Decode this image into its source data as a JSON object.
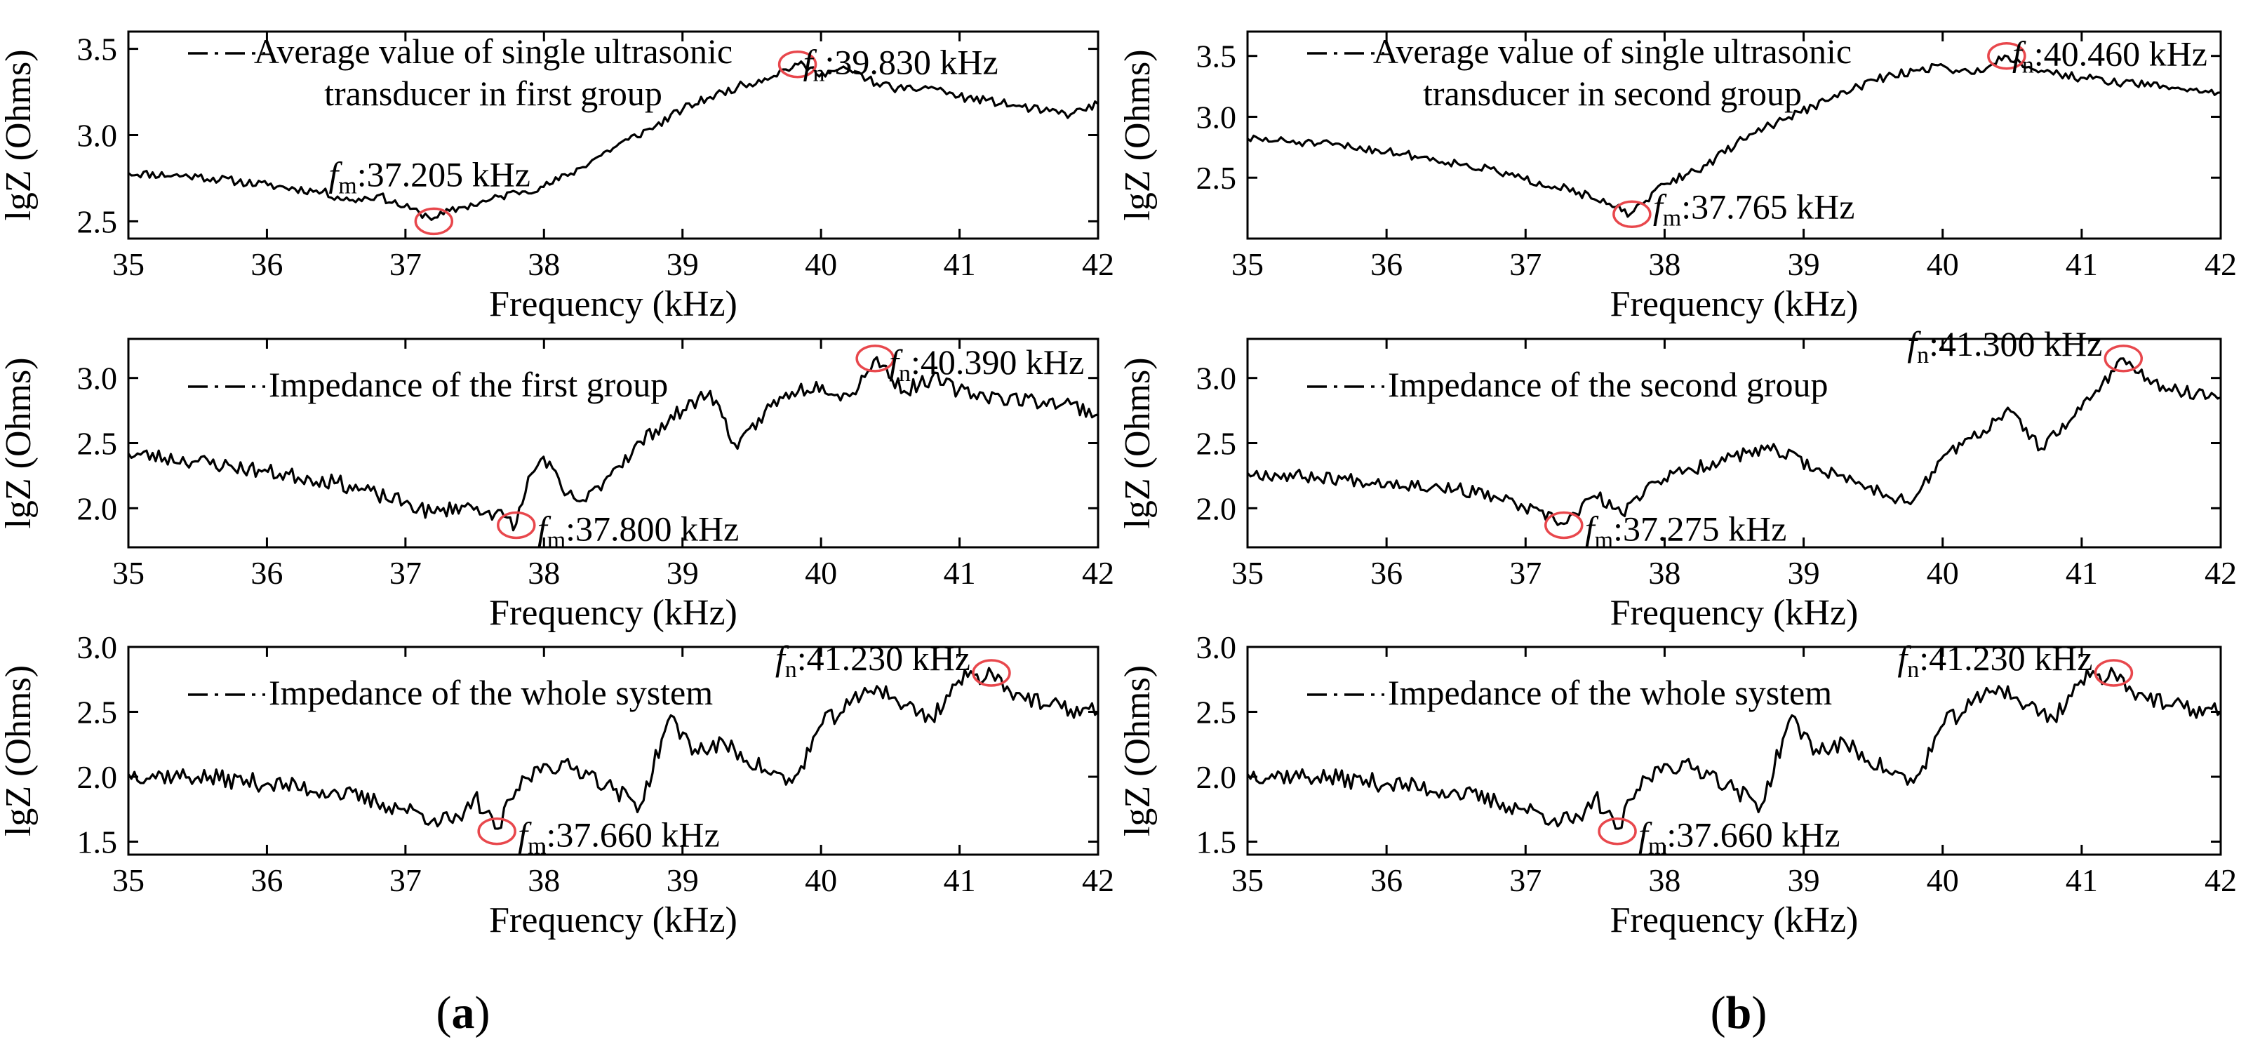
{
  "figure": {
    "panel_labels": {
      "a": {
        "open": "(",
        "letter": "a",
        "close": ")"
      },
      "b": {
        "open": "(",
        "letter": "b",
        "close": ")"
      }
    },
    "line_color": "#000000",
    "marker_color": "#e8474c"
  },
  "chart_data": [
    {
      "type": "line",
      "column": "a",
      "row": 0,
      "title": "",
      "xlabel": "Frequency (kHz)",
      "ylabel": "lgZ (Ohms)",
      "xlim": [
        35,
        42
      ],
      "ylim": [
        2.4,
        3.6
      ],
      "xticks": [
        35,
        36,
        37,
        38,
        39,
        40,
        41,
        42
      ],
      "yticks": [
        2.5,
        3.0,
        3.5
      ],
      "ytick_labels": [
        "2.5",
        "3.0",
        "3.5"
      ],
      "legend_lines": [
        "Average value of single ultrasonic",
        "transducer in first group"
      ],
      "anchors": [
        [
          35,
          2.78
        ],
        [
          35.5,
          2.76
        ],
        [
          36,
          2.71
        ],
        [
          36.4,
          2.67
        ],
        [
          36.6,
          2.62
        ],
        [
          36.8,
          2.65
        ],
        [
          37,
          2.58
        ],
        [
          37.1,
          2.55
        ],
        [
          37.205,
          2.52
        ],
        [
          37.4,
          2.58
        ],
        [
          37.6,
          2.62
        ],
        [
          37.8,
          2.67
        ],
        [
          38,
          2.7
        ],
        [
          38.2,
          2.78
        ],
        [
          38.4,
          2.88
        ],
        [
          38.6,
          2.97
        ],
        [
          38.8,
          3.05
        ],
        [
          39,
          3.15
        ],
        [
          39.2,
          3.22
        ],
        [
          39.4,
          3.28
        ],
        [
          39.6,
          3.33
        ],
        [
          39.83,
          3.41
        ],
        [
          40,
          3.36
        ],
        [
          40.2,
          3.38
        ],
        [
          40.4,
          3.3
        ],
        [
          40.6,
          3.26
        ],
        [
          40.8,
          3.28
        ],
        [
          41,
          3.22
        ],
        [
          41.2,
          3.2
        ],
        [
          41.4,
          3.17
        ],
        [
          41.6,
          3.14
        ],
        [
          41.8,
          3.12
        ],
        [
          42,
          3.18
        ]
      ],
      "noise": 0.025,
      "seed": 11,
      "annotations": [
        {
          "kind": "fm",
          "italic": "f",
          "sub": "m",
          "value": ":37.205 kHz",
          "x": 37.205,
          "y": 2.5
        },
        {
          "kind": "fn",
          "italic": "f",
          "sub": "n",
          "value": ":39.830 kHz",
          "x": 39.83,
          "y": 3.41
        }
      ]
    },
    {
      "type": "line",
      "column": "a",
      "row": 1,
      "title": "",
      "xlabel": "Frequency (kHz)",
      "ylabel": "lgZ (Ohms)",
      "xlim": [
        35,
        42
      ],
      "ylim": [
        1.7,
        3.3
      ],
      "xticks": [
        35,
        36,
        37,
        38,
        39,
        40,
        41,
        42
      ],
      "yticks": [
        2.0,
        2.5,
        3.0
      ],
      "ytick_labels": [
        "2.0",
        "2.5",
        "3.0"
      ],
      "legend_lines": [
        "Impedance of the first group"
      ],
      "anchors": [
        [
          35,
          2.42
        ],
        [
          35.5,
          2.36
        ],
        [
          36,
          2.28
        ],
        [
          36.5,
          2.2
        ],
        [
          36.8,
          2.1
        ],
        [
          37,
          2.04
        ],
        [
          37.2,
          1.96
        ],
        [
          37.4,
          2.02
        ],
        [
          37.6,
          1.98
        ],
        [
          37.8,
          1.88
        ],
        [
          37.9,
          2.25
        ],
        [
          38,
          2.4
        ],
        [
          38.15,
          2.1
        ],
        [
          38.3,
          2.05
        ],
        [
          38.5,
          2.3
        ],
        [
          38.8,
          2.6
        ],
        [
          39,
          2.75
        ],
        [
          39.2,
          2.9
        ],
        [
          39.4,
          2.45
        ],
        [
          39.6,
          2.75
        ],
        [
          39.8,
          2.9
        ],
        [
          40,
          2.95
        ],
        [
          40.2,
          2.85
        ],
        [
          40.39,
          3.15
        ],
        [
          40.6,
          2.9
        ],
        [
          40.8,
          3.0
        ],
        [
          41,
          2.9
        ],
        [
          41.3,
          2.85
        ],
        [
          41.6,
          2.82
        ],
        [
          41.8,
          2.8
        ],
        [
          42,
          2.72
        ]
      ],
      "noise": 0.06,
      "seed": 23,
      "annotations": [
        {
          "kind": "fm",
          "italic": "f",
          "sub": "m",
          "value": ":37.800 kHz",
          "x": 37.8,
          "y": 1.87
        },
        {
          "kind": "fn",
          "italic": "f",
          "sub": "n",
          "value": ":40.390 kHz",
          "x": 40.39,
          "y": 3.15
        }
      ]
    },
    {
      "type": "line",
      "column": "a",
      "row": 2,
      "title": "",
      "xlabel": "Frequency (kHz)",
      "ylabel": "lgZ (Ohms)",
      "xlim": [
        35,
        42
      ],
      "ylim": [
        1.4,
        3.0
      ],
      "xticks": [
        35,
        36,
        37,
        38,
        39,
        40,
        41,
        42
      ],
      "yticks": [
        1.5,
        2.0,
        2.5,
        3.0
      ],
      "ytick_labels": [
        "1.5",
        "2.0",
        "2.5",
        "3.0"
      ],
      "legend_lines": [
        "Impedance of the whole system"
      ],
      "anchors": [
        [
          35,
          2.02
        ],
        [
          35.5,
          2.0
        ],
        [
          36,
          1.95
        ],
        [
          36.5,
          1.88
        ],
        [
          36.8,
          1.8
        ],
        [
          37,
          1.75
        ],
        [
          37.2,
          1.68
        ],
        [
          37.4,
          1.65
        ],
        [
          37.5,
          1.85
        ],
        [
          37.66,
          1.58
        ],
        [
          37.8,
          1.9
        ],
        [
          38,
          2.1
        ],
        [
          38.3,
          2.05
        ],
        [
          38.5,
          1.9
        ],
        [
          38.7,
          1.78
        ],
        [
          38.9,
          2.45
        ],
        [
          39.1,
          2.2
        ],
        [
          39.3,
          2.25
        ],
        [
          39.6,
          2.05
        ],
        [
          39.8,
          1.95
        ],
        [
          40,
          2.4
        ],
        [
          40.2,
          2.55
        ],
        [
          40.4,
          2.7
        ],
        [
          40.6,
          2.55
        ],
        [
          40.8,
          2.45
        ],
        [
          41,
          2.75
        ],
        [
          41.23,
          2.8
        ],
        [
          41.4,
          2.65
        ],
        [
          41.6,
          2.55
        ],
        [
          41.8,
          2.52
        ],
        [
          42,
          2.5
        ]
      ],
      "noise": 0.07,
      "seed": 37,
      "annotations": [
        {
          "kind": "fm",
          "italic": "f",
          "sub": "m",
          "value": ":37.660 kHz",
          "x": 37.66,
          "y": 1.58
        },
        {
          "kind": "fn",
          "italic": "f",
          "sub": "n",
          "value": ":41.230 kHz",
          "x": 41.23,
          "y": 2.8
        }
      ]
    },
    {
      "type": "line",
      "column": "b",
      "row": 0,
      "title": "",
      "xlabel": "Frequency (kHz)",
      "ylabel": "lgZ (Ohms)",
      "xlim": [
        35,
        42
      ],
      "ylim": [
        2.0,
        3.7
      ],
      "xticks": [
        35,
        36,
        37,
        38,
        39,
        40,
        41,
        42
      ],
      "yticks": [
        2.0,
        2.5,
        3.0,
        3.5
      ],
      "ytick_labels": [
        "",
        "2.5",
        "3.0",
        "3.5"
      ],
      "legend_lines": [
        "Average value of single ultrasonic",
        "transducer in second group"
      ],
      "anchors": [
        [
          35,
          2.82
        ],
        [
          35.5,
          2.78
        ],
        [
          36,
          2.72
        ],
        [
          36.5,
          2.62
        ],
        [
          36.8,
          2.55
        ],
        [
          37,
          2.48
        ],
        [
          37.3,
          2.42
        ],
        [
          37.5,
          2.32
        ],
        [
          37.765,
          2.2
        ],
        [
          38,
          2.45
        ],
        [
          38.3,
          2.6
        ],
        [
          38.6,
          2.85
        ],
        [
          38.9,
          3.0
        ],
        [
          39.2,
          3.15
        ],
        [
          39.5,
          3.3
        ],
        [
          39.8,
          3.38
        ],
        [
          40,
          3.42
        ],
        [
          40.2,
          3.35
        ],
        [
          40.46,
          3.5
        ],
        [
          40.7,
          3.38
        ],
        [
          41,
          3.32
        ],
        [
          41.3,
          3.28
        ],
        [
          41.6,
          3.25
        ],
        [
          41.8,
          3.22
        ],
        [
          42,
          3.2
        ]
      ],
      "noise": 0.035,
      "seed": 51,
      "annotations": [
        {
          "kind": "fm",
          "italic": "f",
          "sub": "m",
          "value": ":37.765 kHz",
          "x": 37.765,
          "y": 2.2
        },
        {
          "kind": "fn",
          "italic": "f",
          "sub": "n",
          "value": ":40.460 kHz",
          "x": 40.46,
          "y": 3.5
        }
      ]
    },
    {
      "type": "line",
      "column": "b",
      "row": 1,
      "title": "",
      "xlabel": "Frequency (kHz)",
      "ylabel": "lgZ (Ohms)",
      "xlim": [
        35,
        42
      ],
      "ylim": [
        1.7,
        3.3
      ],
      "xticks": [
        35,
        36,
        37,
        38,
        39,
        40,
        41,
        42
      ],
      "yticks": [
        2.0,
        2.5,
        3.0
      ],
      "ytick_labels": [
        "2.0",
        "2.5",
        "3.0"
      ],
      "legend_lines": [
        "Impedance of the second group"
      ],
      "anchors": [
        [
          35,
          2.27
        ],
        [
          35.5,
          2.24
        ],
        [
          36,
          2.2
        ],
        [
          36.5,
          2.15
        ],
        [
          36.8,
          2.08
        ],
        [
          37,
          2.0
        ],
        [
          37.275,
          1.88
        ],
        [
          37.5,
          2.1
        ],
        [
          37.7,
          1.95
        ],
        [
          37.9,
          2.2
        ],
        [
          38.2,
          2.3
        ],
        [
          38.5,
          2.4
        ],
        [
          38.8,
          2.45
        ],
        [
          39.1,
          2.3
        ],
        [
          39.4,
          2.2
        ],
        [
          39.6,
          2.1
        ],
        [
          39.8,
          2.06
        ],
        [
          40,
          2.4
        ],
        [
          40.3,
          2.6
        ],
        [
          40.5,
          2.75
        ],
        [
          40.7,
          2.45
        ],
        [
          40.9,
          2.65
        ],
        [
          41.1,
          2.9
        ],
        [
          41.3,
          3.15
        ],
        [
          41.5,
          2.95
        ],
        [
          41.7,
          2.9
        ],
        [
          42,
          2.85
        ]
      ],
      "noise": 0.05,
      "seed": 67,
      "annotations": [
        {
          "kind": "fm",
          "italic": "f",
          "sub": "m",
          "value": ":37.275 kHz",
          "x": 37.275,
          "y": 1.87
        },
        {
          "kind": "fn",
          "italic": "f",
          "sub": "n",
          "value": ":41.300 kHz",
          "x": 41.3,
          "y": 3.15
        }
      ]
    },
    {
      "type": "line",
      "column": "b",
      "row": 2,
      "title": "",
      "xlabel": "Frequency (kHz)",
      "ylabel": "lgZ (Ohms)",
      "xlim": [
        35,
        42
      ],
      "ylim": [
        1.4,
        3.0
      ],
      "xticks": [
        35,
        36,
        37,
        38,
        39,
        40,
        41,
        42
      ],
      "yticks": [
        1.5,
        2.0,
        2.5,
        3.0
      ],
      "ytick_labels": [
        "1.5",
        "2.0",
        "2.5",
        "3.0"
      ],
      "legend_lines": [
        "Impedance of the whole system"
      ],
      "anchors": [
        [
          35,
          2.02
        ],
        [
          35.5,
          2.0
        ],
        [
          36,
          1.95
        ],
        [
          36.5,
          1.88
        ],
        [
          36.8,
          1.8
        ],
        [
          37,
          1.75
        ],
        [
          37.2,
          1.68
        ],
        [
          37.4,
          1.65
        ],
        [
          37.5,
          1.85
        ],
        [
          37.66,
          1.58
        ],
        [
          37.8,
          1.9
        ],
        [
          38,
          2.1
        ],
        [
          38.3,
          2.05
        ],
        [
          38.5,
          1.9
        ],
        [
          38.7,
          1.78
        ],
        [
          38.9,
          2.45
        ],
        [
          39.1,
          2.2
        ],
        [
          39.3,
          2.25
        ],
        [
          39.6,
          2.05
        ],
        [
          39.8,
          1.95
        ],
        [
          40,
          2.4
        ],
        [
          40.2,
          2.55
        ],
        [
          40.4,
          2.7
        ],
        [
          40.6,
          2.55
        ],
        [
          40.8,
          2.45
        ],
        [
          41,
          2.75
        ],
        [
          41.23,
          2.8
        ],
        [
          41.4,
          2.65
        ],
        [
          41.6,
          2.55
        ],
        [
          41.8,
          2.52
        ],
        [
          42,
          2.5
        ]
      ],
      "noise": 0.07,
      "seed": 37,
      "annotations": [
        {
          "kind": "fm",
          "italic": "f",
          "sub": "m",
          "value": ":37.660 kHz",
          "x": 37.66,
          "y": 1.58
        },
        {
          "kind": "fn",
          "italic": "f",
          "sub": "n",
          "value": ":41.230 kHz",
          "x": 41.23,
          "y": 2.8
        }
      ]
    }
  ]
}
